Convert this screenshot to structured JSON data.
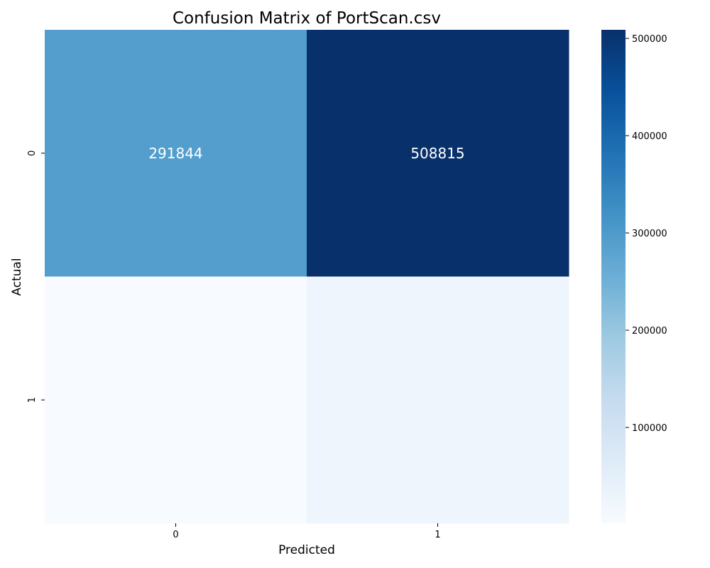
{
  "chart_data": {
    "type": "heatmap",
    "title": "Confusion Matrix of PortScan.csv",
    "xlabel": "Predicted",
    "ylabel": "Actual",
    "x_categories": [
      "0",
      "1"
    ],
    "y_categories": [
      "0",
      "1"
    ],
    "matrix": [
      [
        291844,
        508815
      ],
      [
        1500,
        25000
      ]
    ],
    "annotations": [
      [
        "291844",
        "508815"
      ],
      [
        "",
        ""
      ]
    ],
    "colormap": "Blues",
    "colorbar": {
      "min": 1500,
      "max": 508815,
      "ticks": [
        "100000",
        "200000",
        "300000",
        "400000",
        "500000"
      ],
      "tick_values": [
        100000,
        200000,
        300000,
        400000,
        500000
      ]
    },
    "colors": {
      "low": "#f7fbff",
      "high": "#08306b"
    }
  }
}
